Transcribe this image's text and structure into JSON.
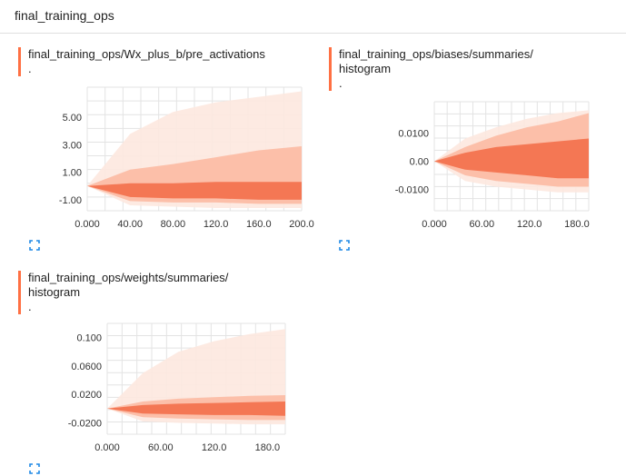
{
  "header": {
    "title": "final_training_ops"
  },
  "colors": {
    "accent": "#ff7043",
    "light": "#fde8df",
    "mid": "#fbb79f",
    "dark": "#f26a45",
    "expand": "#1e88e5",
    "grid": "#e3e3e3"
  },
  "cards": [
    {
      "title_line1": "final_training_ops/Wx_plus_b/pre_activations",
      "title_line2": ".",
      "expand_icon": "fullscreen-icon",
      "chart_data": {
        "type": "area",
        "x": [
          0,
          200
        ],
        "x_ticks": [
          "0.000",
          "40.00",
          "80.00",
          "120.0",
          "160.0",
          "200.0"
        ],
        "y_ticks": [
          "5.00",
          "3.00",
          "1.00",
          "-1.00"
        ],
        "ylim": [
          -1.8,
          7.2
        ],
        "bands": [
          {
            "lo": [
              0,
              -1.4,
              -1.5,
              -1.6,
              -1.6,
              -1.6
            ],
            "hi": [
              0,
              3.8,
              5.4,
              6.1,
              6.5,
              6.9
            ],
            "tone": "light"
          },
          {
            "lo": [
              0,
              -1.1,
              -1.2,
              -1.2,
              -1.3,
              -1.3
            ],
            "hi": [
              0,
              1.2,
              1.6,
              2.1,
              2.6,
              2.9
            ],
            "tone": "mid"
          },
          {
            "lo": [
              0,
              -0.8,
              -0.9,
              -0.9,
              -1.0,
              -1.0
            ],
            "hi": [
              0,
              0.2,
              0.2,
              0.3,
              0.3,
              0.3
            ],
            "tone": "dark"
          }
        ]
      }
    },
    {
      "title_line1": "final_training_ops/biases/summaries/",
      "title_line2": "histogram",
      "title_line3": ".",
      "expand_icon": "fullscreen-icon",
      "chart_data": {
        "type": "area",
        "x": [
          0,
          195
        ],
        "x_ticks": [
          "0.000",
          "60.00",
          "120.0",
          "180.0"
        ],
        "y_ticks": [
          "0.0100",
          "0.00",
          "-0.0100"
        ],
        "ylim": [
          -0.0175,
          0.021
        ],
        "bands": [
          {
            "lo": [
              0,
              -0.007,
              -0.009,
              -0.01,
              -0.011,
              -0.011
            ],
            "hi": [
              0,
              0.008,
              0.012,
              0.015,
              0.017,
              0.018
            ],
            "tone": "light"
          },
          {
            "lo": [
              0,
              -0.005,
              -0.007,
              -0.008,
              -0.009,
              -0.009
            ],
            "hi": [
              0,
              0.005,
              0.009,
              0.012,
              0.014,
              0.017
            ],
            "tone": "mid"
          },
          {
            "lo": [
              0,
              -0.003,
              -0.004,
              -0.005,
              -0.006,
              -0.006
            ],
            "hi": [
              0,
              0.003,
              0.005,
              0.006,
              0.007,
              0.008
            ],
            "tone": "dark"
          }
        ]
      }
    },
    {
      "title_line1": "final_training_ops/weights/summaries/",
      "title_line2": "histogram",
      "title_line3": ".",
      "expand_icon": "fullscreen-icon",
      "chart_data": {
        "type": "area",
        "x": [
          0,
          200
        ],
        "x_ticks": [
          "0.000",
          "60.00",
          "120.0",
          "180.0"
        ],
        "y_ticks": [
          "0.100",
          "0.0600",
          "0.0200",
          "-0.0200"
        ],
        "ylim": [
          -0.036,
          0.12
        ],
        "bands": [
          {
            "lo": [
              0,
              -0.018,
              -0.02,
              -0.021,
              -0.022,
              -0.022
            ],
            "hi": [
              0,
              0.05,
              0.08,
              0.095,
              0.105,
              0.112
            ],
            "tone": "light"
          },
          {
            "lo": [
              0,
              -0.012,
              -0.014,
              -0.015,
              -0.016,
              -0.016
            ],
            "hi": [
              0,
              0.01,
              0.014,
              0.016,
              0.018,
              0.019
            ],
            "tone": "mid"
          },
          {
            "lo": [
              0,
              -0.007,
              -0.008,
              -0.009,
              -0.009,
              -0.01
            ],
            "hi": [
              0,
              0.005,
              0.007,
              0.008,
              0.009,
              0.01
            ],
            "tone": "dark"
          }
        ]
      }
    }
  ]
}
